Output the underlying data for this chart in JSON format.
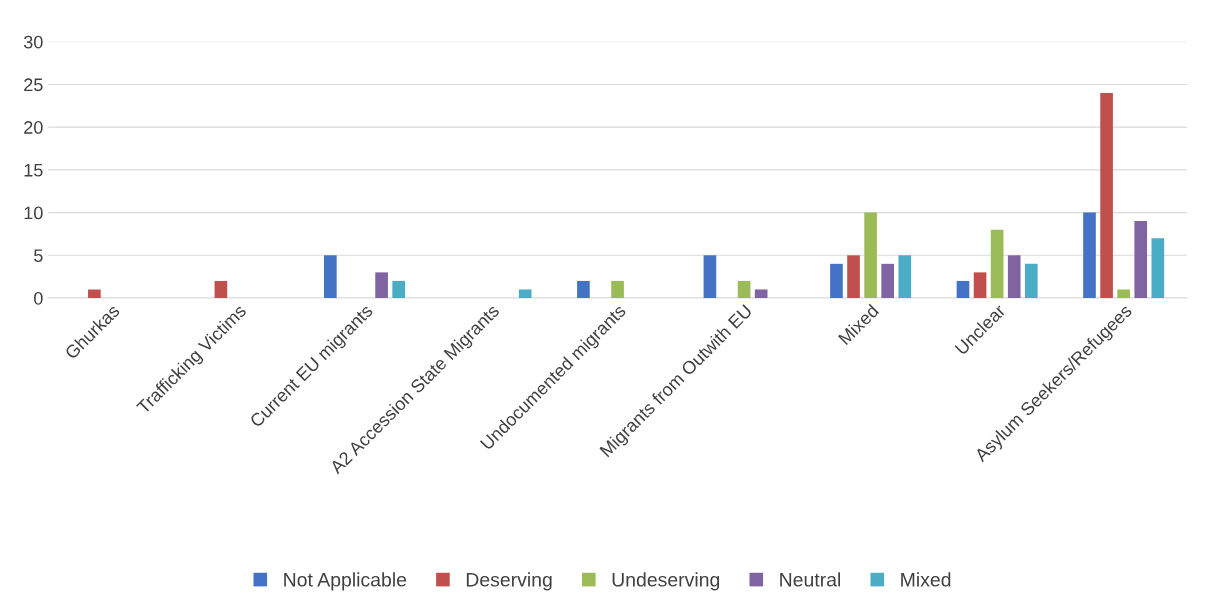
{
  "chart_data": {
    "type": "bar",
    "categories": [
      "Ghurkas",
      "Trafficking Victims",
      "Current EU migrants",
      "A2 Accession State Migrants",
      "Undocumented migrants",
      "Migrants from Outwith EU",
      "Mixed",
      "Unclear",
      "Asylum Seekers/Refugees"
    ],
    "series": [
      {
        "name": "Not Applicable",
        "color": "#4472c4",
        "values": [
          0,
          0,
          5,
          0,
          2,
          5,
          4,
          2,
          10
        ]
      },
      {
        "name": "Deserving",
        "color": "#c0504d",
        "values": [
          1,
          2,
          0,
          0,
          0,
          0,
          5,
          3,
          24
        ]
      },
      {
        "name": "Undeserving",
        "color": "#9bbb59",
        "values": [
          0,
          0,
          0,
          0,
          2,
          2,
          10,
          8,
          1
        ]
      },
      {
        "name": "Neutral",
        "color": "#8064a2",
        "values": [
          0,
          0,
          3,
          0,
          0,
          1,
          4,
          5,
          9
        ]
      },
      {
        "name": "Mixed",
        "color": "#4bacc6",
        "values": [
          0,
          0,
          2,
          1,
          0,
          0,
          5,
          4,
          7
        ]
      }
    ],
    "ylim": [
      0,
      30
    ],
    "yticks": [
      0,
      5,
      10,
      15,
      20,
      25,
      30
    ],
    "grid": "y",
    "legend": "bottom"
  }
}
